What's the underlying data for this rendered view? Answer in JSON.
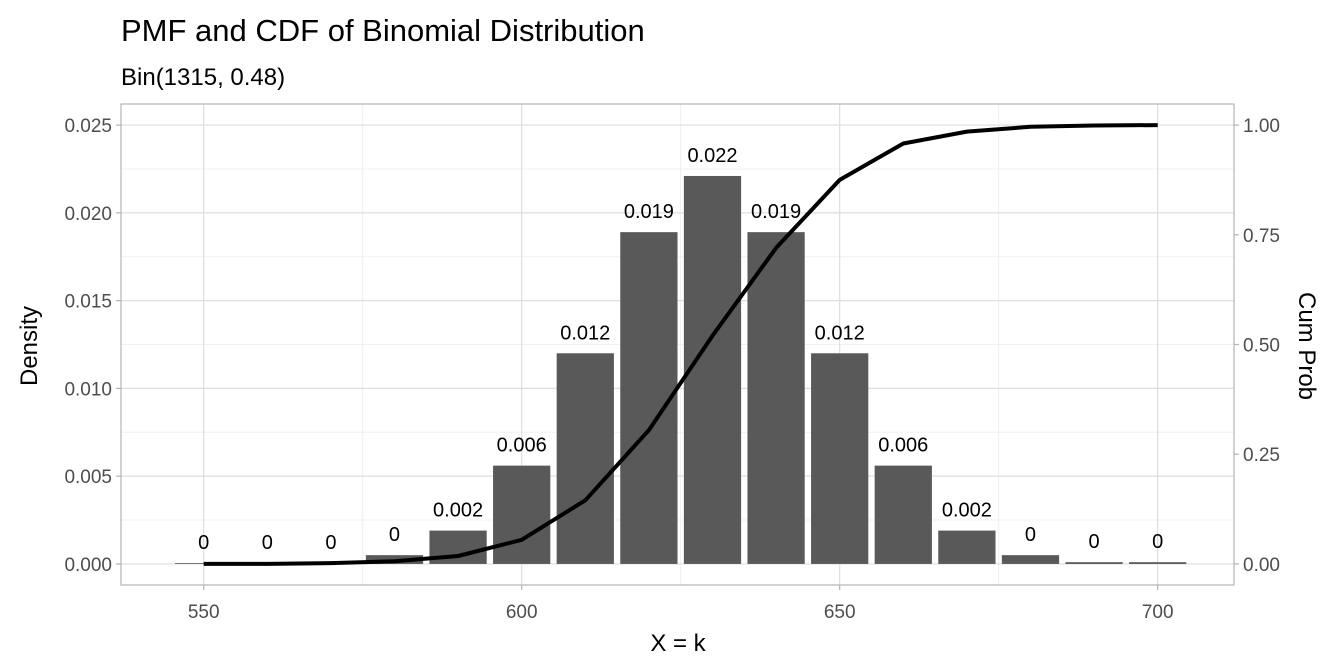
{
  "chart_data": {
    "type": "bar",
    "title": "PMF and CDF of Binomial Distribution",
    "subtitle": "Bin(1315, 0.48)",
    "xlabel": "X = k",
    "ylabel": "Density",
    "y2label": "Cum Prob",
    "xlim": [
      537,
      712
    ],
    "ylim": [
      -0.0012,
      0.0262
    ],
    "y2lim": [
      -0.048,
      1.048
    ],
    "x_ticks": [
      "550",
      "600",
      "650",
      "700"
    ],
    "y_ticks": [
      "0.000",
      "0.005",
      "0.010",
      "0.015",
      "0.020",
      "0.025"
    ],
    "y2_ticks": [
      "0.00",
      "0.25",
      "0.50",
      "0.75",
      "1.00"
    ],
    "grid": true,
    "series": [
      {
        "type": "bar",
        "color": "#595959",
        "x": [
          550,
          560,
          570,
          580,
          590,
          600,
          610,
          620,
          630,
          640,
          650,
          660,
          670,
          680,
          690,
          700
        ],
        "values": [
          0.0,
          0.0,
          0.0,
          0.0005,
          0.0019,
          0.0056,
          0.012,
          0.0189,
          0.0221,
          0.0189,
          0.012,
          0.0056,
          0.0019,
          0.0005,
          0.0001,
          0.0001
        ],
        "labels": [
          "0",
          "0",
          "0",
          "0",
          "0.002",
          "0.006",
          "0.012",
          "0.019",
          "0.022",
          "0.019",
          "0.012",
          "0.006",
          "0.002",
          "0",
          "0",
          "0"
        ]
      },
      {
        "type": "line",
        "axis": "right",
        "color": "#000000",
        "x": [
          550,
          560,
          570,
          580,
          590,
          600,
          610,
          620,
          630,
          640,
          650,
          660,
          670,
          680,
          690,
          700
        ],
        "values": [
          0.0,
          0.0,
          0.002,
          0.006,
          0.018,
          0.055,
          0.145,
          0.305,
          0.52,
          0.72,
          0.875,
          0.958,
          0.985,
          0.996,
          0.999,
          1.0
        ]
      }
    ]
  }
}
